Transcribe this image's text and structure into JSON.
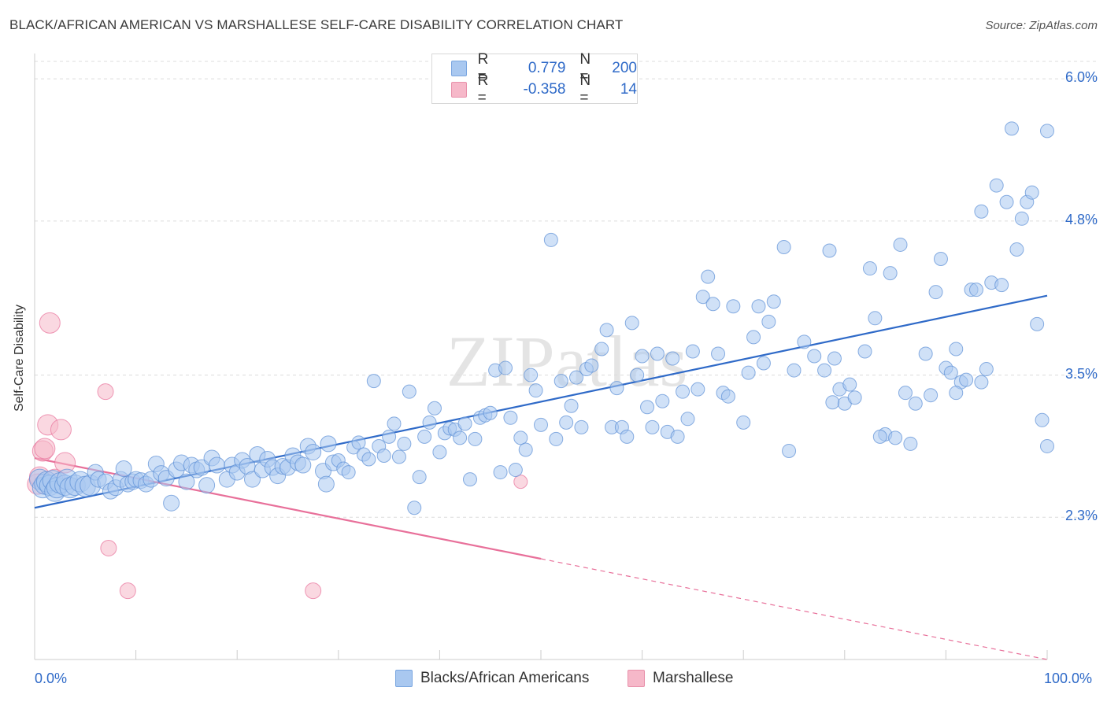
{
  "title": "BLACK/AFRICAN AMERICAN VS MARSHALLESE SELF-CARE DISABILITY CORRELATION CHART",
  "source": "Source: ZipAtlas.com",
  "watermark": "ZIPatlas",
  "legend": {
    "rows": [
      {
        "r_label": "R =",
        "r_value": "0.779",
        "n_label": "N =",
        "n_value": "200",
        "color": "#a9c8f0"
      },
      {
        "r_label": "R =",
        "r_value": "-0.358",
        "n_label": "N =",
        "n_value": "14",
        "color": "#f6b8c9"
      }
    ]
  },
  "bottom_legend": [
    {
      "label": "Blacks/African Americans",
      "color": "#a9c8f0"
    },
    {
      "label": "Marshallese",
      "color": "#f6b8c9"
    }
  ],
  "chart_data": {
    "type": "scatter",
    "title": "BLACK/AFRICAN AMERICAN VS MARSHALLESE SELF-CARE DISABILITY CORRELATION CHART",
    "xlabel": "",
    "ylabel": "Self-Care Disability",
    "xlim": [
      0,
      100
    ],
    "ylim": [
      1.1,
      6.2
    ],
    "x_tick_labels": [
      "0.0%",
      "100.0%"
    ],
    "y_ticks": [
      2.3,
      3.5,
      4.8,
      6.0
    ],
    "y_tick_labels": [
      "2.3%",
      "3.5%",
      "4.8%",
      "6.0%"
    ],
    "grid": true,
    "legend_position": "top-center",
    "series": [
      {
        "name": "Blacks/African Americans",
        "color": "#5b8fd6",
        "fill": "#a9c8f0",
        "trend": {
          "x": [
            0,
            100
          ],
          "y": [
            2.38,
            4.17
          ]
        },
        "points": [
          [
            0.5,
            2.62
          ],
          [
            0.8,
            2.55
          ],
          [
            1.0,
            2.58
          ],
          [
            1.2,
            2.6
          ],
          [
            1.5,
            2.57
          ],
          [
            1.8,
            2.61
          ],
          [
            2.0,
            2.52
          ],
          [
            2.2,
            2.55
          ],
          [
            2.5,
            2.59
          ],
          [
            3.0,
            2.57
          ],
          [
            3.2,
            2.62
          ],
          [
            3.5,
            2.55
          ],
          [
            4.0,
            2.57
          ],
          [
            4.5,
            2.6
          ],
          [
            5.0,
            2.56
          ],
          [
            5.5,
            2.57
          ],
          [
            6.0,
            2.68
          ],
          [
            6.3,
            2.62
          ],
          [
            7.0,
            2.6
          ],
          [
            7.5,
            2.52
          ],
          [
            8.0,
            2.55
          ],
          [
            8.5,
            2.62
          ],
          [
            8.8,
            2.71
          ],
          [
            9.2,
            2.58
          ],
          [
            9.7,
            2.6
          ],
          [
            10.0,
            2.62
          ],
          [
            10.5,
            2.61
          ],
          [
            11.0,
            2.58
          ],
          [
            11.5,
            2.62
          ],
          [
            12.0,
            2.75
          ],
          [
            12.5,
            2.67
          ],
          [
            13.0,
            2.63
          ],
          [
            13.5,
            2.42
          ],
          [
            14.0,
            2.7
          ],
          [
            14.5,
            2.76
          ],
          [
            15.0,
            2.6
          ],
          [
            15.5,
            2.74
          ],
          [
            16.0,
            2.7
          ],
          [
            16.5,
            2.72
          ],
          [
            17.0,
            2.57
          ],
          [
            17.5,
            2.8
          ],
          [
            18.0,
            2.74
          ],
          [
            19.0,
            2.62
          ],
          [
            19.5,
            2.74
          ],
          [
            20.0,
            2.68
          ],
          [
            20.5,
            2.78
          ],
          [
            21.0,
            2.73
          ],
          [
            21.5,
            2.62
          ],
          [
            22.0,
            2.83
          ],
          [
            22.5,
            2.7
          ],
          [
            23.0,
            2.79
          ],
          [
            23.5,
            2.72
          ],
          [
            24.0,
            2.65
          ],
          [
            24.5,
            2.73
          ],
          [
            25.0,
            2.72
          ],
          [
            25.5,
            2.82
          ],
          [
            26.0,
            2.76
          ],
          [
            26.5,
            2.74
          ],
          [
            27.0,
            2.9
          ],
          [
            27.5,
            2.85
          ],
          [
            28.5,
            2.69
          ],
          [
            28.8,
            2.58
          ],
          [
            29.0,
            2.92
          ],
          [
            29.5,
            2.76
          ],
          [
            30.0,
            2.78
          ],
          [
            30.5,
            2.71
          ],
          [
            31.0,
            2.68
          ],
          [
            31.5,
            2.89
          ],
          [
            32.0,
            2.93
          ],
          [
            32.5,
            2.83
          ],
          [
            33.0,
            2.79
          ],
          [
            33.5,
            3.45
          ],
          [
            34.0,
            2.9
          ],
          [
            34.5,
            2.82
          ],
          [
            35.0,
            2.98
          ],
          [
            35.5,
            3.09
          ],
          [
            36.0,
            2.81
          ],
          [
            36.5,
            2.92
          ],
          [
            37.0,
            3.36
          ],
          [
            37.5,
            2.38
          ],
          [
            38.0,
            2.64
          ],
          [
            38.5,
            2.98
          ],
          [
            39.0,
            3.1
          ],
          [
            39.5,
            3.22
          ],
          [
            40.0,
            2.85
          ],
          [
            40.5,
            3.01
          ],
          [
            41.0,
            3.05
          ],
          [
            41.5,
            3.04
          ],
          [
            42.0,
            2.97
          ],
          [
            42.5,
            3.09
          ],
          [
            43.0,
            2.62
          ],
          [
            43.5,
            2.96
          ],
          [
            44.0,
            3.14
          ],
          [
            44.5,
            3.16
          ],
          [
            45.0,
            3.18
          ],
          [
            45.5,
            3.54
          ],
          [
            46.0,
            2.68
          ],
          [
            46.5,
            3.56
          ],
          [
            47.0,
            3.14
          ],
          [
            47.5,
            2.7
          ],
          [
            48.0,
            2.97
          ],
          [
            48.5,
            2.87
          ],
          [
            49.0,
            3.5
          ],
          [
            49.5,
            3.37
          ],
          [
            50.0,
            3.08
          ],
          [
            51.0,
            4.64
          ],
          [
            51.5,
            2.96
          ],
          [
            52.0,
            3.45
          ],
          [
            52.5,
            3.1
          ],
          [
            53.0,
            3.24
          ],
          [
            53.5,
            3.48
          ],
          [
            54.0,
            3.06
          ],
          [
            54.5,
            3.55
          ],
          [
            55.0,
            3.58
          ],
          [
            56.0,
            3.72
          ],
          [
            56.5,
            3.88
          ],
          [
            57.0,
            3.06
          ],
          [
            57.5,
            3.39
          ],
          [
            58.0,
            3.06
          ],
          [
            58.5,
            2.98
          ],
          [
            59.0,
            3.94
          ],
          [
            59.5,
            3.5
          ],
          [
            60.0,
            3.66
          ],
          [
            60.5,
            3.23
          ],
          [
            61.0,
            3.06
          ],
          [
            61.5,
            3.68
          ],
          [
            62.0,
            3.28
          ],
          [
            62.5,
            3.02
          ],
          [
            63.0,
            3.64
          ],
          [
            63.5,
            2.98
          ],
          [
            64.0,
            3.36
          ],
          [
            64.5,
            3.13
          ],
          [
            65.0,
            3.7
          ],
          [
            65.5,
            3.38
          ],
          [
            66.0,
            4.16
          ],
          [
            66.5,
            4.33
          ],
          [
            67.0,
            4.1
          ],
          [
            67.5,
            3.68
          ],
          [
            68.0,
            3.35
          ],
          [
            68.5,
            3.32
          ],
          [
            69.0,
            4.08
          ],
          [
            70.0,
            3.1
          ],
          [
            70.5,
            3.52
          ],
          [
            71.0,
            3.82
          ],
          [
            71.5,
            4.08
          ],
          [
            72.0,
            3.6
          ],
          [
            72.5,
            3.95
          ],
          [
            73.0,
            4.12
          ],
          [
            74.0,
            4.58
          ],
          [
            74.5,
            2.86
          ],
          [
            75.0,
            3.54
          ],
          [
            76.0,
            3.78
          ],
          [
            77.0,
            3.66
          ],
          [
            78.0,
            3.54
          ],
          [
            78.5,
            4.55
          ],
          [
            78.8,
            3.27
          ],
          [
            79.0,
            3.64
          ],
          [
            79.5,
            3.38
          ],
          [
            80.0,
            3.26
          ],
          [
            80.5,
            3.42
          ],
          [
            81.0,
            3.31
          ],
          [
            82.0,
            3.7
          ],
          [
            82.5,
            4.4
          ],
          [
            83.0,
            3.98
          ],
          [
            84.0,
            3.0
          ],
          [
            84.5,
            4.36
          ],
          [
            85.0,
            2.97
          ],
          [
            85.5,
            4.6
          ],
          [
            86.0,
            3.35
          ],
          [
            86.5,
            2.92
          ],
          [
            87.0,
            3.26
          ],
          [
            88.0,
            3.68
          ],
          [
            88.5,
            3.33
          ],
          [
            89.0,
            4.2
          ],
          [
            89.5,
            4.48
          ],
          [
            90.0,
            3.56
          ],
          [
            90.5,
            3.52
          ],
          [
            91.0,
            3.72
          ],
          [
            91.5,
            3.44
          ],
          [
            92.0,
            3.46
          ],
          [
            92.5,
            4.22
          ],
          [
            93.0,
            4.22
          ],
          [
            93.5,
            4.88
          ],
          [
            94.0,
            3.55
          ],
          [
            94.5,
            4.28
          ],
          [
            95.0,
            5.1
          ],
          [
            95.5,
            4.26
          ],
          [
            96.0,
            4.96
          ],
          [
            96.5,
            5.58
          ],
          [
            97.0,
            4.56
          ],
          [
            97.5,
            4.82
          ],
          [
            98.0,
            4.96
          ],
          [
            98.5,
            5.04
          ],
          [
            99.0,
            3.93
          ],
          [
            99.5,
            3.12
          ],
          [
            100.0,
            2.9
          ],
          [
            100.0,
            5.56
          ],
          [
            93.5,
            3.44
          ],
          [
            91.0,
            3.35
          ],
          [
            83.5,
            2.98
          ]
        ]
      },
      {
        "name": "Marshallese",
        "color": "#e8709a",
        "fill": "#f6b8c9",
        "trend": {
          "x": [
            0,
            100
          ],
          "y": [
            2.8,
            1.1
          ]
        },
        "points": [
          [
            0.3,
            2.58
          ],
          [
            0.5,
            2.64
          ],
          [
            0.8,
            2.86
          ],
          [
            1.0,
            2.88
          ],
          [
            1.3,
            3.08
          ],
          [
            1.5,
            3.94
          ],
          [
            2.0,
            2.62
          ],
          [
            2.6,
            3.04
          ],
          [
            3.0,
            2.76
          ],
          [
            7.0,
            3.36
          ],
          [
            7.3,
            2.04
          ],
          [
            9.2,
            1.68
          ],
          [
            27.5,
            1.68
          ],
          [
            48.0,
            2.6
          ]
        ]
      }
    ]
  }
}
